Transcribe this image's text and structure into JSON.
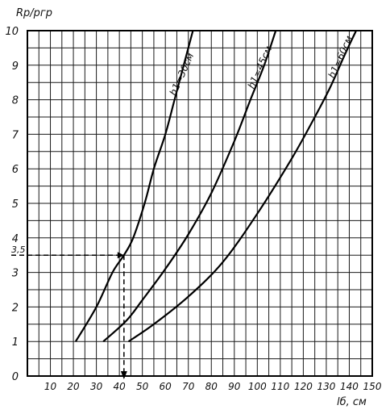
{
  "chart_data": {
    "type": "line",
    "ylabel": "Rр/pгр",
    "xlabel": "lб, см",
    "xlim": [
      0,
      150
    ],
    "ylim": [
      0,
      10
    ],
    "x_ticks": [
      "10",
      "20",
      "30",
      "40",
      "50",
      "60",
      "70",
      "80",
      "90",
      "100",
      "110",
      "120",
      "130",
      "140",
      "150"
    ],
    "y_ticks": [
      "0",
      "1",
      "2",
      "3",
      "4",
      "5",
      "6",
      "7",
      "8",
      "9",
      "10"
    ],
    "grid": true,
    "series": [
      {
        "name": "h1=30см",
        "points": [
          [
            21,
            1.0
          ],
          [
            30,
            2.0
          ],
          [
            37,
            3.0
          ],
          [
            42,
            3.5
          ],
          [
            46,
            4.0
          ],
          [
            51,
            5.0
          ],
          [
            55,
            6.0
          ],
          [
            60,
            7.0
          ],
          [
            64,
            8.0
          ],
          [
            68,
            9.0
          ],
          [
            72,
            10.0
          ]
        ]
      },
      {
        "name": "h1=45см",
        "points": [
          [
            33,
            1.0
          ],
          [
            43,
            1.6
          ],
          [
            50,
            2.2
          ],
          [
            60,
            3.1
          ],
          [
            70,
            4.1
          ],
          [
            80,
            5.3
          ],
          [
            90,
            6.8
          ],
          [
            97,
            8.0
          ],
          [
            103,
            9.0
          ],
          [
            108,
            10.0
          ]
        ]
      },
      {
        "name": "h1=60см",
        "points": [
          [
            44,
            1.0
          ],
          [
            55,
            1.5
          ],
          [
            70,
            2.3
          ],
          [
            85,
            3.3
          ],
          [
            100,
            4.7
          ],
          [
            115,
            6.3
          ],
          [
            125,
            7.5
          ],
          [
            132,
            8.4
          ],
          [
            138,
            9.3
          ],
          [
            143,
            10.0
          ]
        ]
      }
    ],
    "annotations": [
      {
        "label": "3,5",
        "x": 42,
        "y": 3.5,
        "style": "dashed-guide"
      }
    ]
  }
}
